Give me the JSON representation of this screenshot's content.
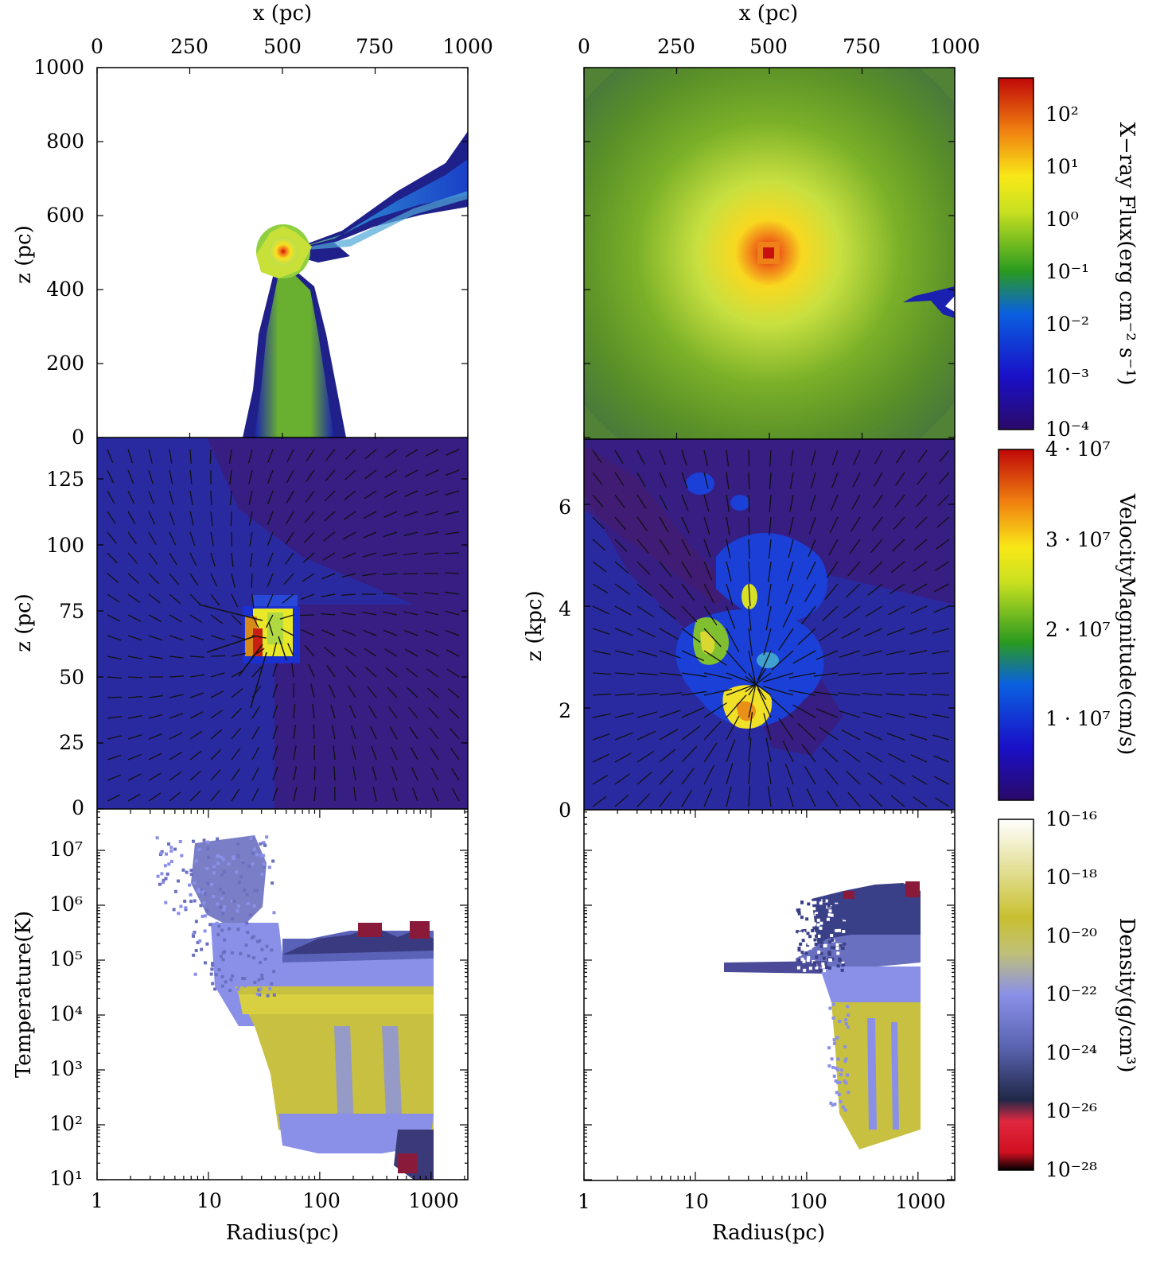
{
  "chart_data": [
    {
      "type": "heatmap",
      "panel": "top-left",
      "top_axis": {
        "label": "x (pc)",
        "range": [
          0,
          1000
        ],
        "ticks": [
          "0",
          "250",
          "500",
          "750",
          "1000"
        ]
      },
      "y_axis": {
        "label": "z (pc)",
        "range": [
          0,
          1000
        ],
        "ticks": [
          "0",
          "200",
          "400",
          "600",
          "800",
          "1000"
        ]
      },
      "quantity": "X-ray flux",
      "features": "point source at (500, 500) with a jet toward upper right and a cone down to z = 0"
    },
    {
      "type": "heatmap",
      "panel": "top-right",
      "top_axis": {
        "label": "x (pc)",
        "range": [
          0,
          1000
        ],
        "ticks": [
          "0",
          "250",
          "500",
          "750",
          "1000"
        ]
      },
      "quantity": "X-ray flux",
      "features": "centrally concentrated emission peaking at (500, 500)"
    },
    {
      "type": "heatmap",
      "panel": "middle-left",
      "y_axis": {
        "label": "z (pc)",
        "range": [
          0,
          140
        ],
        "ticks": [
          "0",
          "25",
          "50",
          "75",
          "100",
          "125"
        ]
      },
      "quantity": "velocity magnitude with velocity vectors",
      "features": "fast clump near z = 65 pc"
    },
    {
      "type": "heatmap",
      "panel": "middle-right",
      "y_axis": {
        "label": "z (kpc)",
        "range": [
          0,
          7.3
        ],
        "ticks": [
          "0",
          "2",
          "4",
          "6"
        ]
      },
      "quantity": "velocity magnitude with velocity vectors",
      "features": "filamentary outflow centred near z = 2-4 kpc"
    },
    {
      "type": "heatmap",
      "panel": "bottom-left",
      "x_axis": {
        "label": "Radius(pc)",
        "scale": "log",
        "range": [
          1,
          2000
        ],
        "ticks": [
          "1",
          "10",
          "100",
          "1000"
        ]
      },
      "y_axis": {
        "label": "Temperature(K)",
        "scale": "log",
        "range": [
          10,
          30000000
        ],
        "ticks": [
          "10",
          "100",
          "1000",
          "10000",
          "100000",
          "1000000",
          "10000000"
        ]
      },
      "quantity": "density phase plot"
    },
    {
      "type": "heatmap",
      "panel": "bottom-right",
      "x_axis": {
        "label": "Radius(pc)",
        "scale": "log",
        "range": [
          1,
          2000
        ],
        "ticks": [
          "1",
          "10",
          "100",
          "1000"
        ]
      },
      "y_axis": {
        "scale": "log",
        "range": [
          10,
          30000000
        ]
      },
      "quantity": "density phase plot"
    }
  ],
  "labels": {
    "top_left_xlabel": "x (pc)",
    "top_right_xlabel": "x (pc)",
    "tl_ylabel": "z (pc)",
    "ml_ylabel": "z (pc)",
    "mr_ylabel": "z (kpc)",
    "bl_ylabel": "Temperature(K)",
    "bl_xlabel": "Radius(pc)",
    "br_xlabel": "Radius(pc)"
  },
  "tick_labels": {
    "top_x": [
      "0",
      "250",
      "500",
      "750",
      "1000"
    ],
    "tl_y": [
      "1000",
      "800",
      "600",
      "400",
      "200",
      "0"
    ],
    "ml_y": [
      "125",
      "100",
      "75",
      "50",
      "25",
      "0"
    ],
    "mr_y": [
      "6",
      "4",
      "2",
      "0"
    ],
    "bottom_x": [
      "1",
      "10",
      "100",
      "1000"
    ]
  },
  "colorbars": [
    {
      "label": "X−ray Flux(erg cm⁻² s⁻¹)",
      "colormap": "jet",
      "ticks": [
        "10²",
        "10¹",
        "10⁰",
        "10⁻¹",
        "10⁻²",
        "10⁻³",
        "10⁻⁴"
      ],
      "range": [
        0.0001,
        300
      ]
    },
    {
      "label": "VelocityMagnitude(cm/s)",
      "colormap": "jet",
      "ticks": [
        "4 · 10⁷",
        "3 · 10⁷",
        "2 · 10⁷",
        "1 · 10⁷"
      ],
      "range": [
        0,
        40000000
      ]
    },
    {
      "label": "Density(g/cm³)",
      "colormap": "gist_stern-like",
      "ticks": [
        "10⁻¹⁶",
        "10⁻¹⁸",
        "10⁻²⁰",
        "10⁻²²",
        "10⁻²⁴",
        "10⁻²⁶",
        "10⁻²⁸"
      ],
      "range": [
        1e-28,
        1e-16
      ]
    }
  ],
  "temp_ticks": [
    "10¹",
    "10²",
    "10³",
    "10⁴",
    "10⁵",
    "10⁶",
    "10⁷"
  ],
  "colors": {
    "jet_dark": "#2a0a68",
    "deep_blue": "#2a1e8a",
    "green": "#6aa020",
    "yellow": "#f0e020",
    "red": "#c01010",
    "lavender": "#8a90e0",
    "olive": "#c8c040"
  }
}
